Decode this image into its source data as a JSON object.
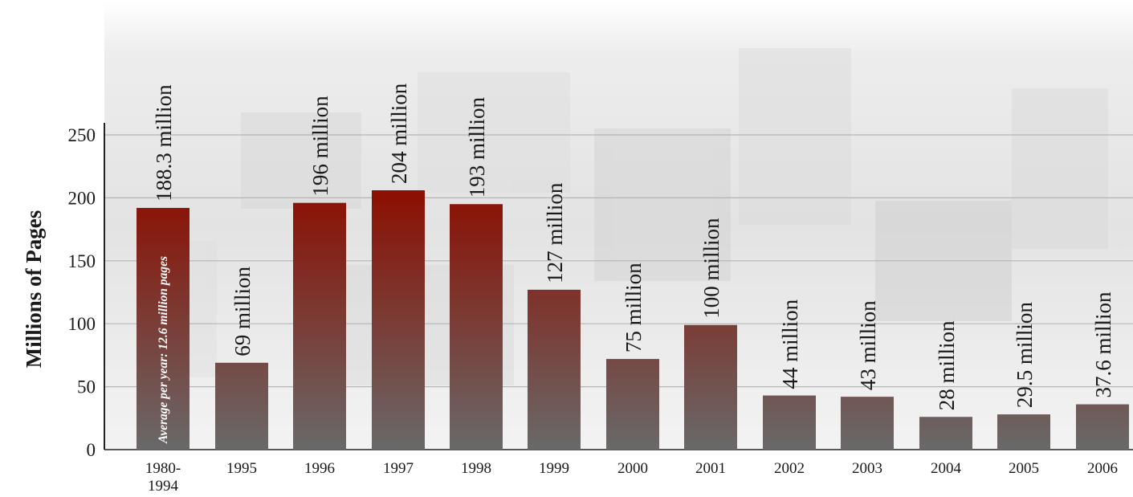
{
  "chart_data": {
    "type": "bar",
    "ylabel": "Millions of Pages",
    "ylim": [
      0,
      250
    ],
    "yticks": [
      0,
      50,
      100,
      150,
      200,
      250
    ],
    "grid": true,
    "categories": [
      "1980-\n1994",
      "1995",
      "1996",
      "1997",
      "1998",
      "1999",
      "2000",
      "2001",
      "2002",
      "2003",
      "2004",
      "2005",
      "2006"
    ],
    "values": [
      188.3,
      69,
      196,
      204,
      193,
      127,
      75,
      100,
      44,
      43,
      28,
      29.5,
      37.6
    ],
    "bar_heights": [
      192,
      69,
      196,
      206,
      195,
      127,
      72,
      99,
      43,
      42,
      26,
      28,
      36
    ],
    "data_labels": [
      "188.3 million",
      "69 million",
      "196 million",
      "204 million",
      "193 million",
      "127 million",
      "75 million",
      "100 million",
      "44 million",
      "43 million",
      "28 million",
      "29.5 million",
      "37.6 million"
    ],
    "annotations": [
      "Average per year: 12.6 million pages"
    ],
    "colors": {
      "bar_top": "#8c0f02",
      "bar_bottom": "#696969",
      "grid": "#b5b5b5",
      "axis": "#222222",
      "text": "#1a1a1a"
    }
  }
}
